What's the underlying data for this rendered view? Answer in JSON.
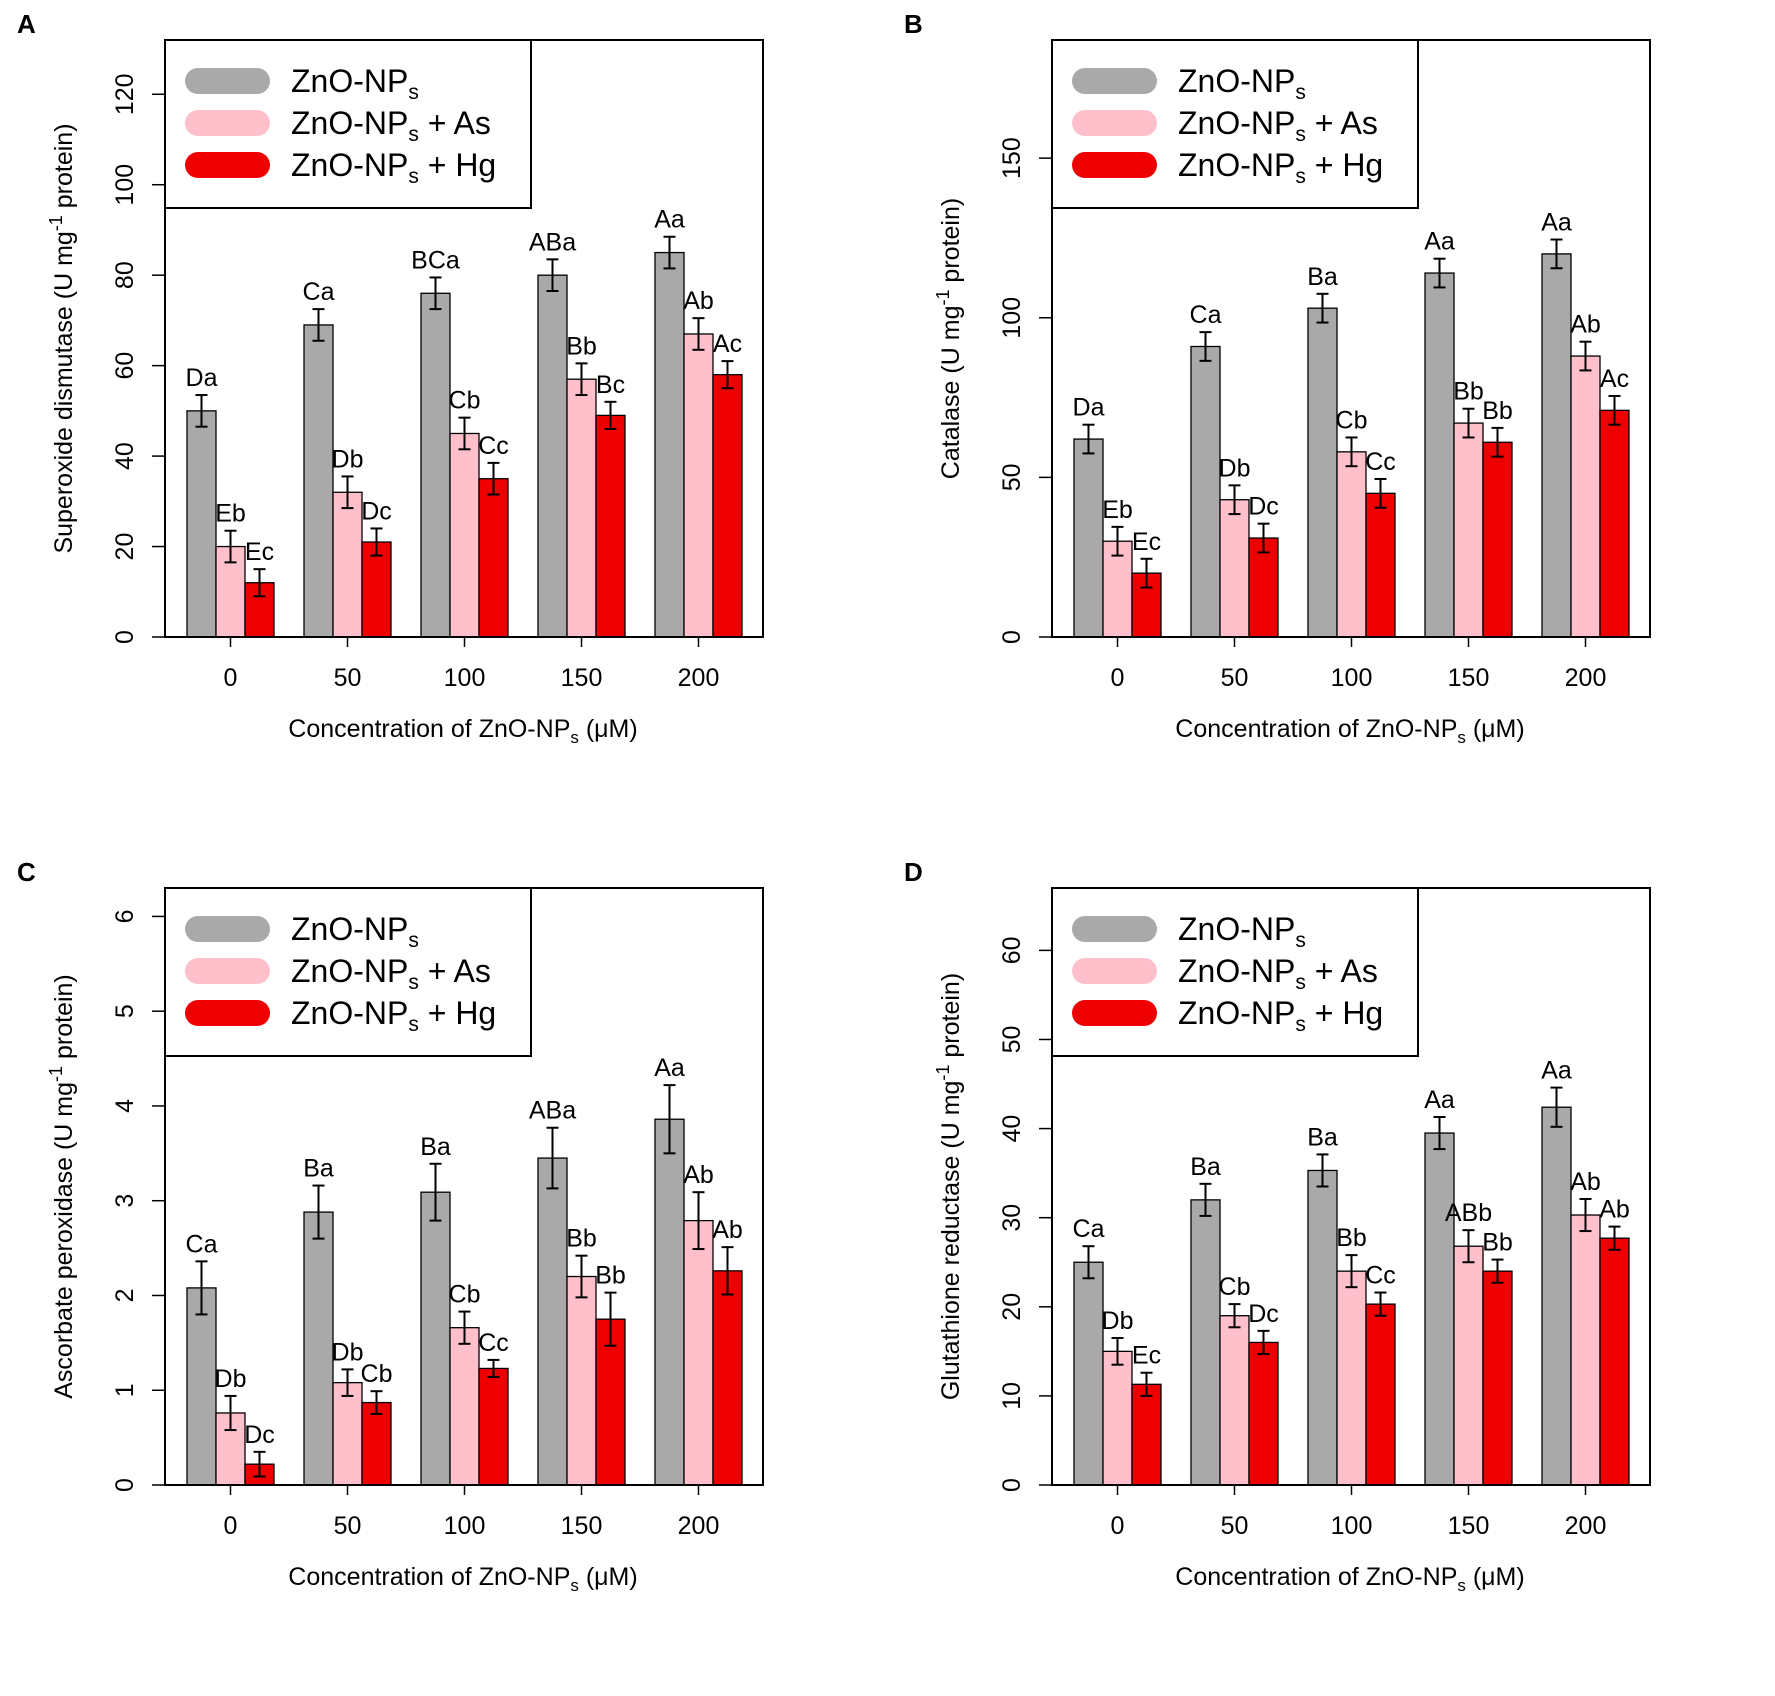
{
  "figure": {
    "legend_entries": [
      {
        "main": "ZnO-NP",
        "sub": "s",
        "suffix": ""
      },
      {
        "main": "ZnO-NP",
        "sub": "s",
        "suffix": " + As"
      },
      {
        "main": "ZnO-NP",
        "sub": "s",
        "suffix": " + Hg"
      }
    ],
    "xlabel_main": "Concentration of ZnO-NP",
    "xlabel_sub": "s",
    "xlabel_suffix": " (μM)",
    "ylabel_unit_pre": " (U mg",
    "ylabel_unit_sup": "-1",
    "ylabel_unit_post": " protein)"
  },
  "colors": {
    "series": [
      "#a9a9a9",
      "#ffc0cb",
      "#ee0000"
    ],
    "axis": "#000000"
  },
  "chart_data": [
    {
      "panel": "A",
      "type": "bar",
      "ylabel": "Superoxide dismutase",
      "ylim": [
        0,
        132
      ],
      "yticks": [
        0,
        20,
        40,
        60,
        80,
        100,
        120
      ],
      "categories": [
        "0",
        "50",
        "100",
        "150",
        "200"
      ],
      "series": [
        {
          "name": "ZnO-NPs",
          "values": [
            50,
            69,
            76,
            80,
            85
          ],
          "errors": [
            3.5,
            3.5,
            3.5,
            3.5,
            3.5
          ],
          "labels": [
            "Da",
            "Ca",
            "BCa",
            "ABa",
            "Aa"
          ]
        },
        {
          "name": "ZnO-NPs + As",
          "values": [
            20,
            32,
            45,
            57,
            67
          ],
          "errors": [
            3.5,
            3.5,
            3.5,
            3.5,
            3.5
          ],
          "labels": [
            "Eb",
            "Db",
            "Cb",
            "Bb",
            "Ab"
          ]
        },
        {
          "name": "ZnO-NPs + Hg",
          "values": [
            12,
            21,
            35,
            49,
            58
          ],
          "errors": [
            3,
            3,
            3.5,
            3,
            3
          ],
          "labels": [
            "Ec",
            "Dc",
            "Cc",
            "Bc",
            "Ac"
          ]
        }
      ]
    },
    {
      "panel": "B",
      "type": "bar",
      "ylabel": "Catalase",
      "ylim": [
        0,
        187
      ],
      "yticks": [
        0,
        50,
        100,
        150
      ],
      "categories": [
        "0",
        "50",
        "100",
        "150",
        "200"
      ],
      "series": [
        {
          "name": "ZnO-NPs",
          "values": [
            62,
            91,
            103,
            114,
            120
          ],
          "errors": [
            4.5,
            4.5,
            4.5,
            4.5,
            4.5
          ],
          "labels": [
            "Da",
            "Ca",
            "Ba",
            "Aa",
            "Aa"
          ]
        },
        {
          "name": "ZnO-NPs + As",
          "values": [
            30,
            43,
            58,
            67,
            88
          ],
          "errors": [
            4.5,
            4.5,
            4.5,
            4.5,
            4.5
          ],
          "labels": [
            "Eb",
            "Db",
            "Cb",
            "Bb",
            "Ab"
          ]
        },
        {
          "name": "ZnO-NPs + Hg",
          "values": [
            20,
            31,
            45,
            61,
            71
          ],
          "errors": [
            4.5,
            4.5,
            4.5,
            4.5,
            4.5
          ],
          "labels": [
            "Ec",
            "Dc",
            "Cc",
            "Bb",
            "Ac"
          ]
        }
      ]
    },
    {
      "panel": "C",
      "type": "bar",
      "ylabel": "Ascorbate peroxidase",
      "ylim": [
        0,
        6.3
      ],
      "yticks": [
        0,
        1,
        2,
        3,
        4,
        5,
        6
      ],
      "categories": [
        "0",
        "50",
        "100",
        "150",
        "200"
      ],
      "series": [
        {
          "name": "ZnO-NPs",
          "values": [
            2.08,
            2.88,
            3.09,
            3.45,
            3.86
          ],
          "errors": [
            0.28,
            0.28,
            0.3,
            0.32,
            0.36
          ],
          "labels": [
            "Ca",
            "Ba",
            "Ba",
            "ABa",
            "Aa"
          ]
        },
        {
          "name": "ZnO-NPs + As",
          "values": [
            0.76,
            1.08,
            1.66,
            2.2,
            2.79
          ],
          "errors": [
            0.18,
            0.14,
            0.17,
            0.22,
            0.3
          ],
          "labels": [
            "Db",
            "Db",
            "Cb",
            "Bb",
            "Ab"
          ]
        },
        {
          "name": "ZnO-NPs + Hg",
          "values": [
            0.22,
            0.87,
            1.23,
            1.75,
            2.26
          ],
          "errors": [
            0.13,
            0.12,
            0.09,
            0.28,
            0.25
          ],
          "labels": [
            "Dc",
            "Cb",
            "Cc",
            "Bb",
            "Ab"
          ]
        }
      ]
    },
    {
      "panel": "D",
      "type": "bar",
      "ylabel": "Glutathione reductase",
      "ylim": [
        0,
        67
      ],
      "yticks": [
        0,
        10,
        20,
        30,
        40,
        50,
        60
      ],
      "categories": [
        "0",
        "50",
        "100",
        "150",
        "200"
      ],
      "series": [
        {
          "name": "ZnO-NPs",
          "values": [
            25,
            32,
            35.3,
            39.5,
            42.4
          ],
          "errors": [
            1.8,
            1.8,
            1.8,
            1.8,
            2.2
          ],
          "labels": [
            "Ca",
            "Ba",
            "Ba",
            "Aa",
            "Aa"
          ]
        },
        {
          "name": "ZnO-NPs + As",
          "values": [
            15,
            19,
            24,
            26.8,
            30.3
          ],
          "errors": [
            1.5,
            1.3,
            1.8,
            1.8,
            1.8
          ],
          "labels": [
            "Db",
            "Cb",
            "Bb",
            "ABb",
            "Ab"
          ]
        },
        {
          "name": "ZnO-NPs + Hg",
          "values": [
            11.3,
            16,
            20.3,
            24,
            27.7
          ],
          "errors": [
            1.3,
            1.3,
            1.3,
            1.3,
            1.3
          ],
          "labels": [
            "Ec",
            "Dc",
            "Cc",
            "Bb",
            "Ab"
          ]
        }
      ]
    }
  ]
}
